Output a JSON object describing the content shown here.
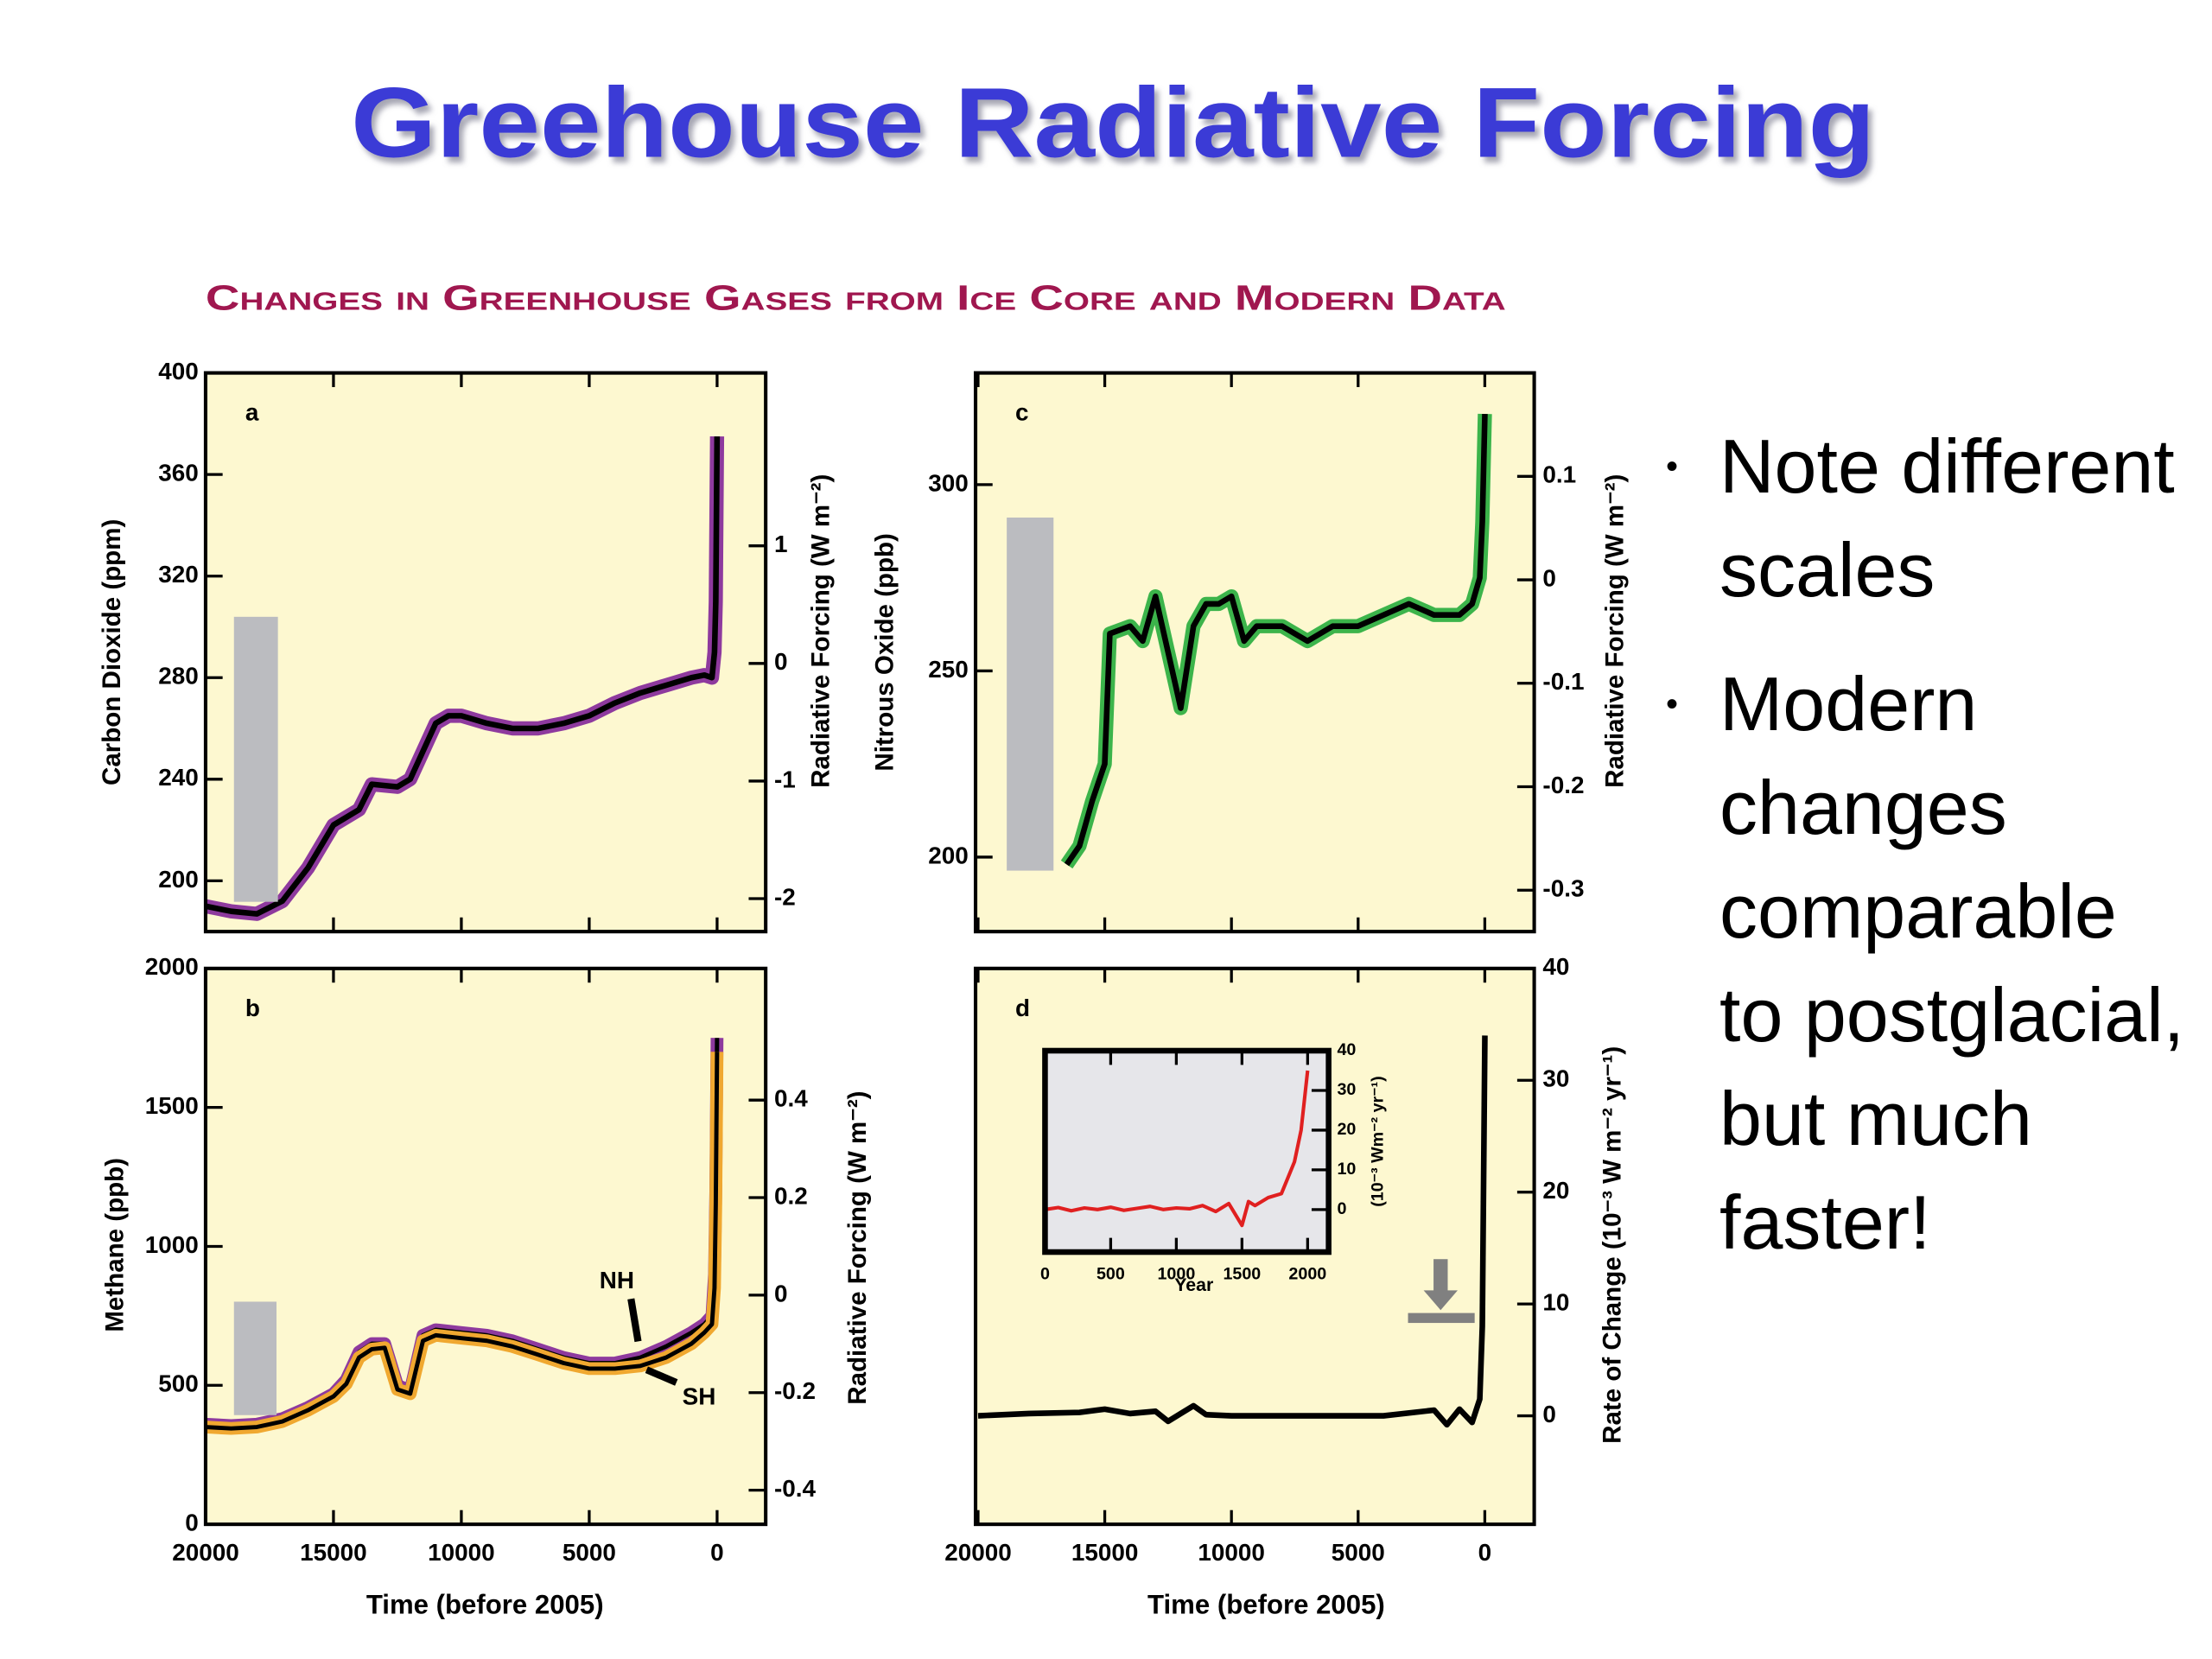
{
  "title": "Greehouse Radiative Forcing",
  "figure_title": "Changes in Greenhouse Gases from Ice Core and Modern Data",
  "bullets": [
    "Note different scales",
    "Modern changes comparable to postglacial, but much faster!"
  ],
  "chart_data": [
    {
      "type": "line",
      "panel": "a",
      "ylabel": "Carbon Dioxide (ppm)",
      "y2label": "Radiative Forcing (W m⁻²)",
      "xlim": [
        20000,
        -1900
      ],
      "xticks": [
        20000,
        15000,
        10000,
        5000,
        0
      ],
      "show_xtick_labels": false,
      "ylim": [
        180,
        400
      ],
      "yticks": [
        200,
        240,
        280,
        320,
        360,
        400
      ],
      "y2lim": [
        -2.28,
        2.47
      ],
      "y2ticks": [
        -2,
        -1,
        0,
        1
      ],
      "x": [
        20000,
        19000,
        18000,
        17000,
        16000,
        15000,
        14000,
        13500,
        12500,
        12000,
        11000,
        10500,
        10000,
        9000,
        8000,
        7000,
        6000,
        5000,
        4000,
        3000,
        2000,
        1000,
        500,
        200,
        100,
        50,
        0
      ],
      "values": [
        190,
        188,
        187,
        192,
        205,
        222,
        228,
        238,
        237,
        240,
        262,
        265,
        265,
        262,
        260,
        260,
        262,
        265,
        270,
        274,
        277,
        280,
        281,
        280,
        290,
        310,
        375
      ],
      "color": "#000000",
      "halo_color": "#8e3a9e",
      "background": "#fdf8d0"
    },
    {
      "type": "line",
      "panel": "b",
      "ylabel": "Methane (ppb)",
      "y2label": "Radiative Forcing (W m⁻²)",
      "xlabel": "Time (before 2005)",
      "xlim": [
        20000,
        -1900
      ],
      "xticks": [
        20000,
        15000,
        10000,
        5000,
        0
      ],
      "show_xtick_labels": true,
      "ylim": [
        0,
        2000
      ],
      "yticks": [
        0,
        500,
        1000,
        1500,
        2000
      ],
      "y2lim": [
        -0.47,
        0.67
      ],
      "y2ticks": [
        -0.4,
        -0.2,
        0,
        0.2,
        0.4
      ],
      "x": [
        20000,
        19000,
        18000,
        17000,
        16000,
        15000,
        14500,
        14000,
        13500,
        13000,
        12500,
        12000,
        11500,
        11000,
        10000,
        9000,
        8000,
        7000,
        6000,
        5000,
        4000,
        3000,
        2000,
        1000,
        500,
        200,
        100,
        50,
        0
      ],
      "series": [
        {
          "name": "NH",
          "color": "#8e3a9e",
          "values": [
            360,
            355,
            360,
            380,
            420,
            470,
            520,
            620,
            650,
            650,
            500,
            480,
            680,
            700,
            690,
            680,
            660,
            630,
            600,
            580,
            580,
            600,
            640,
            690,
            720,
            750,
            900,
            1200,
            1750
          ]
        },
        {
          "name": "SH",
          "color": "#f0a830",
          "values": [
            350,
            345,
            350,
            370,
            410,
            460,
            505,
            600,
            630,
            635,
            485,
            470,
            660,
            680,
            670,
            660,
            640,
            610,
            580,
            560,
            560,
            570,
            600,
            650,
            690,
            720,
            850,
            1150,
            1700
          ]
        }
      ],
      "background": "#fdf8d0"
    },
    {
      "type": "line",
      "panel": "c",
      "ylabel": "Nitrous Oxide (ppb)",
      "y2label": "Radiative Forcing (W m⁻²)",
      "xlim": [
        20100,
        -1950
      ],
      "xticks": [
        20000,
        15000,
        10000,
        5000,
        0
      ],
      "show_xtick_labels": false,
      "ylim": [
        180,
        330
      ],
      "yticks": [
        200,
        250,
        300
      ],
      "y2lim": [
        -0.34,
        0.2
      ],
      "y2ticks": [
        -0.3,
        -0.2,
        -0.1,
        0,
        0.1
      ],
      "x": [
        16500,
        16000,
        15500,
        15000,
        14800,
        14000,
        13500,
        13000,
        12500,
        12000,
        11500,
        11000,
        10500,
        10000,
        9500,
        9000,
        8000,
        7000,
        6000,
        5000,
        4000,
        3000,
        2000,
        1000,
        500,
        200,
        100,
        0
      ],
      "values": [
        198,
        203,
        215,
        225,
        260,
        262,
        258,
        270,
        255,
        240,
        262,
        268,
        268,
        270,
        258,
        262,
        262,
        258,
        262,
        262,
        265,
        268,
        265,
        265,
        268,
        275,
        290,
        319
      ],
      "color": "#000000",
      "halo_color": "#3cb44b",
      "background": "#fdf8d0"
    },
    {
      "type": "line",
      "panel": "d",
      "ylabel": "Rate of Change (10⁻³ W m⁻² yr⁻¹)",
      "xlabel": "Time (before 2005)",
      "yaxis_side": "right",
      "xlim": [
        20100,
        -1950
      ],
      "xticks": [
        20000,
        15000,
        10000,
        5000,
        0
      ],
      "show_xtick_labels": true,
      "ylim": [
        -9.7,
        40
      ],
      "yticks": [
        0,
        10,
        20,
        30,
        40
      ],
      "x": [
        20000,
        18000,
        16000,
        15000,
        14000,
        13000,
        12500,
        12000,
        11500,
        11000,
        10000,
        8000,
        6000,
        4000,
        2000,
        1500,
        1000,
        500,
        200,
        100,
        0
      ],
      "values": [
        0,
        0.2,
        0.3,
        0.6,
        0.2,
        0.4,
        -0.5,
        0.2,
        0.9,
        0.1,
        0,
        0,
        0,
        0,
        0.5,
        -0.8,
        0.6,
        -0.6,
        1.5,
        8,
        34
      ],
      "color": "#000000",
      "background": "#fdf8d0"
    },
    {
      "type": "line",
      "ylabel": "(10⁻³ Wm⁻² yr⁻¹)",
      "xlabel": "Year",
      "yaxis_side": "right",
      "xlim": [
        0,
        2160
      ],
      "xticks": [
        0,
        500,
        1000,
        1500,
        2000
      ],
      "show_xtick_labels": true,
      "ylim": [
        -10.7,
        40
      ],
      "yticks": [
        0,
        10,
        20,
        30,
        40
      ],
      "x": [
        0,
        100,
        200,
        300,
        400,
        500,
        600,
        700,
        800,
        900,
        1000,
        1100,
        1200,
        1300,
        1400,
        1500,
        1550,
        1600,
        1700,
        1800,
        1850,
        1900,
        1950,
        2000
      ],
      "values": [
        0,
        0.5,
        -0.3,
        0.4,
        0,
        0.6,
        -0.2,
        0.3,
        0.8,
        0,
        0.4,
        0.2,
        1,
        -0.5,
        1.5,
        -4,
        2,
        1,
        3,
        4,
        8,
        12,
        20,
        35
      ],
      "color": "#e02020",
      "background": "#e6e6ea"
    }
  ]
}
